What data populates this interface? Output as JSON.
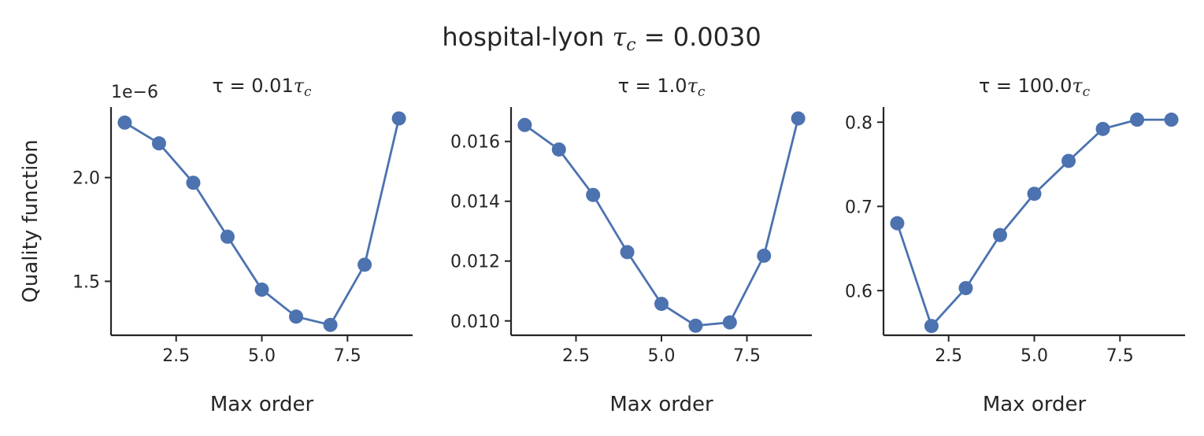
{
  "figure": {
    "title_prefix": "hospital-lyon ",
    "title_symbol": "τ",
    "title_sub": "c",
    "title_suffix": " = 0.0030"
  },
  "colors": {
    "series": "#4c72b0",
    "axes": "#262626"
  },
  "chart_data": [
    {
      "type": "line",
      "title_prefix": "τ = 0.01",
      "title_symbol": "τ",
      "title_sub": "c",
      "xlabel": "Max order",
      "ylabel": "Quality function",
      "offset_label": "1e−6",
      "xlim": [
        0.6,
        9.4
      ],
      "ylim": [
        1.24,
        2.34
      ],
      "xticks": [
        2.5,
        5.0,
        7.5
      ],
      "xtick_labels": [
        "2.5",
        "5.0",
        "7.5"
      ],
      "yticks": [
        1.5,
        2.0
      ],
      "ytick_labels": [
        "1.5",
        "2.0"
      ],
      "x": [
        1,
        2,
        3,
        4,
        5,
        6,
        7,
        8,
        9
      ],
      "y": [
        2.265,
        2.165,
        1.975,
        1.715,
        1.46,
        1.33,
        1.29,
        1.58,
        2.285
      ],
      "marker": "circle",
      "grid": false,
      "legend": false
    },
    {
      "type": "line",
      "title_prefix": "τ = 1.0",
      "title_symbol": "τ",
      "title_sub": "c",
      "xlabel": "Max order",
      "ylabel": "",
      "xlim": [
        0.6,
        9.4
      ],
      "ylim": [
        0.00952,
        0.01715
      ],
      "xticks": [
        2.5,
        5.0,
        7.5
      ],
      "xtick_labels": [
        "2.5",
        "5.0",
        "7.5"
      ],
      "yticks": [
        0.01,
        0.012,
        0.014,
        0.016
      ],
      "ytick_labels": [
        "0.010",
        "0.012",
        "0.014",
        "0.016"
      ],
      "x": [
        1,
        2,
        3,
        4,
        5,
        6,
        7,
        8,
        9
      ],
      "y": [
        0.01655,
        0.01573,
        0.01421,
        0.0123,
        0.01057,
        0.00984,
        0.00995,
        0.01218,
        0.01677
      ],
      "marker": "circle",
      "grid": false,
      "legend": false
    },
    {
      "type": "line",
      "title_prefix": "τ = 100.0",
      "title_symbol": "τ",
      "title_sub": "c",
      "xlabel": "Max order",
      "ylabel": "",
      "xlim": [
        0.6,
        9.4
      ],
      "ylim": [
        0.547,
        0.818
      ],
      "xticks": [
        2.5,
        5.0,
        7.5
      ],
      "xtick_labels": [
        "2.5",
        "5.0",
        "7.5"
      ],
      "yticks": [
        0.6,
        0.7,
        0.8
      ],
      "ytick_labels": [
        "0.6",
        "0.7",
        "0.8"
      ],
      "x": [
        1,
        2,
        3,
        4,
        5,
        6,
        7,
        8,
        9
      ],
      "y": [
        0.68,
        0.558,
        0.603,
        0.666,
        0.715,
        0.754,
        0.792,
        0.803,
        0.803
      ],
      "marker": "circle",
      "grid": false,
      "legend": false
    }
  ]
}
